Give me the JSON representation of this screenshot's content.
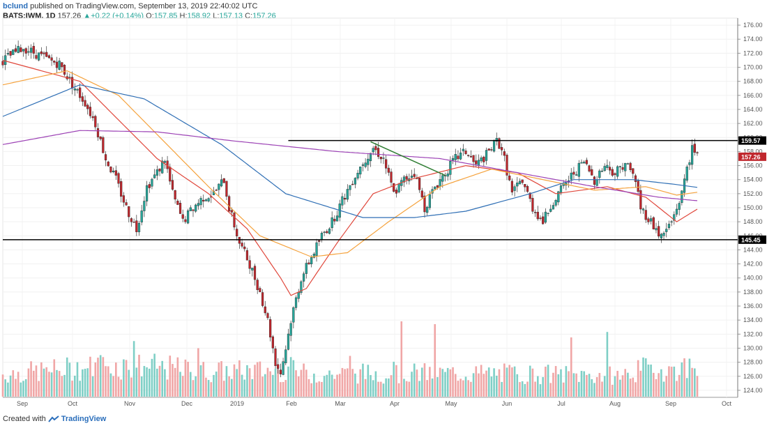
{
  "header": {
    "author": "bclund",
    "published_text": "published on TradingView.com, September 13, 2019 22:40:02 UTC",
    "symbol": "BATS:IWM, 1D",
    "last": "157.26",
    "change": "+0.22 (+0.14%)",
    "o_label": "O:",
    "o": "157.85",
    "h_label": "H:",
    "h": "158.92",
    "l_label": "L:",
    "l": "157.13",
    "c_label": "C:",
    "c": "157.26"
  },
  "footer": {
    "prefix": "Created with",
    "brand": "TradingView"
  },
  "colors": {
    "up": "#26a69a",
    "down": "#c0272d",
    "vol_up": "#7fcfc6",
    "vol_down": "#f0a6a6",
    "ma20": "#e0473b",
    "ma50": "#f5a23c",
    "ma100": "#2f6fb5",
    "ma200": "#9c42b5"
  },
  "chart_data": {
    "type": "candlestick",
    "x_ticks": [
      "Sep",
      "Oct",
      "Nov",
      "Dec",
      "2019",
      "Feb",
      "Mar",
      "Apr",
      "May",
      "Jun",
      "Jul",
      "Aug",
      "Sep",
      "Oct"
    ],
    "y_ticks": [
      "124.00",
      "126.00",
      "128.00",
      "130.00",
      "132.00",
      "134.00",
      "136.00",
      "138.00",
      "140.00",
      "142.00",
      "144.00",
      "146.00",
      "148.00",
      "150.00",
      "152.00",
      "154.00",
      "156.00",
      "158.00",
      "160.00",
      "162.00",
      "164.00",
      "166.00",
      "168.00",
      "170.00",
      "172.00",
      "174.00",
      "176.00"
    ],
    "ylim": [
      123,
      177
    ],
    "close_path": [
      [
        0,
        171.0
      ],
      [
        8,
        172.8
      ],
      [
        18,
        171.0
      ],
      [
        22,
        170.5
      ],
      [
        28,
        167.0
      ],
      [
        32,
        165.0
      ],
      [
        36,
        162.0
      ],
      [
        40,
        157.0
      ],
      [
        44,
        154.0
      ],
      [
        48,
        150.0
      ],
      [
        52,
        147.0
      ],
      [
        56,
        153.0
      ],
      [
        60,
        155.0
      ],
      [
        63,
        157.0
      ],
      [
        66,
        152.0
      ],
      [
        70,
        148.0
      ],
      [
        74,
        150.0
      ],
      [
        78,
        151.5
      ],
      [
        82,
        152.0
      ],
      [
        86,
        154.0
      ],
      [
        88,
        150.0
      ],
      [
        92,
        145.0
      ],
      [
        96,
        142.0
      ],
      [
        100,
        138.0
      ],
      [
        103,
        134.0
      ],
      [
        106,
        128.0
      ],
      [
        108,
        126.5
      ],
      [
        110,
        130.0
      ],
      [
        112,
        134.0
      ],
      [
        116,
        140.0
      ],
      [
        120,
        143.0
      ],
      [
        124,
        146.0
      ],
      [
        128,
        148.0
      ],
      [
        132,
        151.0
      ],
      [
        136,
        154.0
      ],
      [
        140,
        156.5
      ],
      [
        144,
        158.5
      ],
      [
        148,
        157.0
      ],
      [
        152,
        152.0
      ],
      [
        156,
        154.0
      ],
      [
        160,
        155.0
      ],
      [
        164,
        150.0
      ],
      [
        168,
        153.0
      ],
      [
        172,
        155.0
      ],
      [
        176,
        157.0
      ],
      [
        180,
        158.0
      ],
      [
        184,
        156.0
      ],
      [
        188,
        157.5
      ],
      [
        192,
        159.5
      ],
      [
        194,
        158.5
      ],
      [
        198,
        152.0
      ],
      [
        202,
        154.0
      ],
      [
        206,
        150.0
      ],
      [
        210,
        148.0
      ],
      [
        214,
        151.0
      ],
      [
        218,
        153.0
      ],
      [
        222,
        155.0
      ],
      [
        226,
        156.5
      ],
      [
        230,
        154.0
      ],
      [
        234,
        156.0
      ],
      [
        238,
        155.0
      ],
      [
        242,
        156.5
      ],
      [
        246,
        154.0
      ],
      [
        248,
        150.0
      ],
      [
        252,
        148.0
      ],
      [
        256,
        145.8
      ],
      [
        260,
        148.0
      ],
      [
        262,
        150.0
      ],
      [
        264,
        152.0
      ],
      [
        266,
        156.0
      ],
      [
        268,
        158.2
      ],
      [
        270,
        157.3
      ]
    ],
    "volume_path": [
      [
        0,
        3.2
      ],
      [
        40,
        4.4
      ],
      [
        55,
        4.4
      ],
      [
        80,
        3.6
      ],
      [
        95,
        3.7
      ],
      [
        110,
        3.8
      ],
      [
        120,
        3.2
      ],
      [
        150,
        3.4
      ],
      [
        200,
        3.3
      ],
      [
        240,
        3.0
      ],
      [
        250,
        4.0
      ],
      [
        260,
        3.8
      ],
      [
        270,
        4.4
      ]
    ],
    "bars": 271,
    "resistance": 159.57,
    "support": 145.45,
    "price_labels": [
      "159.57",
      "157.26",
      "145.45"
    ],
    "trendline": [
      [
        143,
        159.4
      ],
      [
        172,
        154.6
      ]
    ],
    "ma_lines": [
      {
        "id": "ma20",
        "points": [
          [
            0,
            171.0
          ],
          [
            30,
            168.0
          ],
          [
            60,
            157.0
          ],
          [
            80,
            152.0
          ],
          [
            95,
            147.0
          ],
          [
            108,
            140.0
          ],
          [
            112,
            137.5
          ],
          [
            118,
            138.5
          ],
          [
            130,
            145.0
          ],
          [
            144,
            152.0
          ],
          [
            158,
            154.0
          ],
          [
            180,
            156.0
          ],
          [
            200,
            155.0
          ],
          [
            215,
            152.0
          ],
          [
            235,
            153.0
          ],
          [
            250,
            151.5
          ],
          [
            262,
            148.0
          ],
          [
            270,
            149.8
          ]
        ]
      },
      {
        "id": "ma50",
        "points": [
          [
            0,
            167.5
          ],
          [
            25,
            169.5
          ],
          [
            45,
            166.0
          ],
          [
            80,
            153.0
          ],
          [
            100,
            146.0
          ],
          [
            120,
            143.0
          ],
          [
            134,
            143.6
          ],
          [
            150,
            148.0
          ],
          [
            170,
            153.0
          ],
          [
            190,
            155.5
          ],
          [
            210,
            154.0
          ],
          [
            230,
            152.5
          ],
          [
            250,
            153.0
          ],
          [
            262,
            151.8
          ],
          [
            270,
            152.2
          ]
        ]
      },
      {
        "id": "ma100",
        "points": [
          [
            0,
            163.0
          ],
          [
            30,
            167.5
          ],
          [
            55,
            165.5
          ],
          [
            85,
            159.0
          ],
          [
            110,
            152.0
          ],
          [
            140,
            148.6
          ],
          [
            160,
            148.6
          ],
          [
            180,
            149.5
          ],
          [
            205,
            152.0
          ],
          [
            222,
            154.0
          ],
          [
            245,
            154.0
          ],
          [
            262,
            153.3
          ],
          [
            270,
            152.9
          ]
        ]
      },
      {
        "id": "ma200",
        "points": [
          [
            0,
            159.0
          ],
          [
            30,
            161.0
          ],
          [
            60,
            160.8
          ],
          [
            90,
            159.5
          ],
          [
            130,
            158.0
          ],
          [
            170,
            157.0
          ],
          [
            200,
            155.0
          ],
          [
            230,
            153.0
          ],
          [
            255,
            151.5
          ],
          [
            270,
            151.0
          ]
        ]
      }
    ],
    "volume_axis_top": 11
  }
}
